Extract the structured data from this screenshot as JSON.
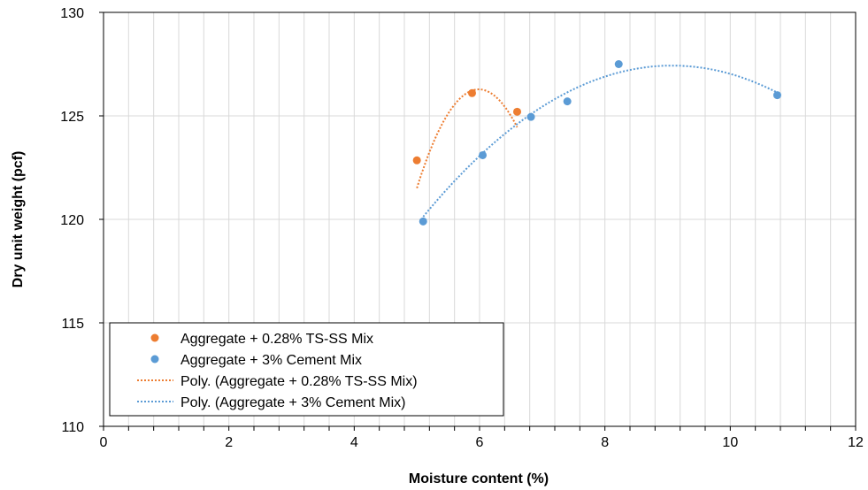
{
  "chart_data": {
    "type": "scatter",
    "xlabel": "Moisture content (%)",
    "ylabel": "Dry unit weight (pcf)",
    "xlim": [
      0,
      12
    ],
    "ylim": [
      110,
      130
    ],
    "x_ticks": [
      0,
      2,
      4,
      6,
      8,
      10,
      12
    ],
    "y_ticks": [
      110,
      115,
      120,
      125,
      130
    ],
    "x_minor_step": 0.4,
    "grid": true,
    "legend_position": "bottom-left",
    "series": [
      {
        "name": "Aggregate + 0.28% TS-SS Mix",
        "color": "#ED7D31",
        "x": [
          5.0,
          5.88,
          6.6
        ],
        "y": [
          122.85,
          126.1,
          125.2
        ]
      },
      {
        "name": "Aggregate + 3% Cement Mix",
        "color": "#5B9BD5",
        "x": [
          5.1,
          6.05,
          6.82,
          7.4,
          8.22,
          10.75
        ],
        "y": [
          119.9,
          123.1,
          124.95,
          125.7,
          127.5,
          126.0
        ]
      }
    ],
    "trendlines": [
      {
        "name": "Poly. (Aggregate + 0.28% TS-SS Mix)",
        "color": "#ED7D31",
        "style": "dotted",
        "order": 2,
        "x_range": [
          5.0,
          6.6
        ],
        "coefficients": [
          -4.89,
          58.56,
          -49.04
        ]
      },
      {
        "name": "Poly. (Aggregate + 3% Cement Mix)",
        "color": "#5B9BD5",
        "style": "dotted",
        "order": 2,
        "x_range": [
          5.1,
          10.75
        ],
        "coefficients": [
          -0.463,
          8.4,
          89.33
        ]
      }
    ]
  }
}
